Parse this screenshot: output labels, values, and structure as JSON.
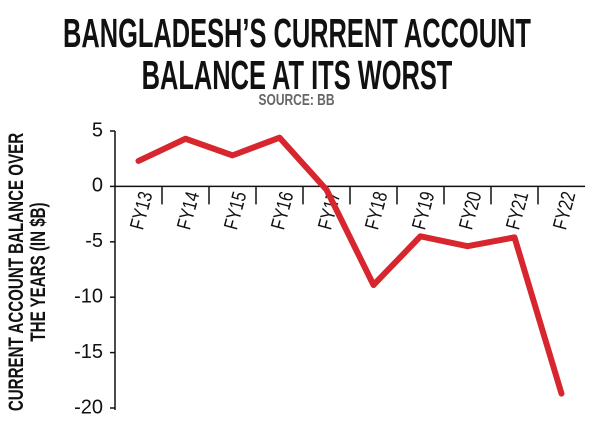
{
  "chart_data": {
    "type": "line",
    "title": "BANGLADESH’S CURRENT ACCOUNT BALANCE AT ITS WORST",
    "subtitle": "SOURCE: BB",
    "y_label": "CURRENT ACCOUNT BALANCE OVER THE YEARS (IN $B)",
    "categories": [
      "FY13",
      "FY14",
      "FY15",
      "FY16",
      "FY17",
      "FY18",
      "FY19",
      "FY20",
      "FY21",
      "FY22"
    ],
    "values": [
      2.3,
      4.3,
      2.8,
      4.4,
      -0.3,
      -8.9,
      -4.5,
      -5.4,
      -4.6,
      -18.7
    ],
    "color": "#d7262e",
    "ylim": [
      -20,
      5
    ],
    "yticks": [
      -20,
      -15,
      -10,
      -5,
      0,
      5
    ]
  }
}
